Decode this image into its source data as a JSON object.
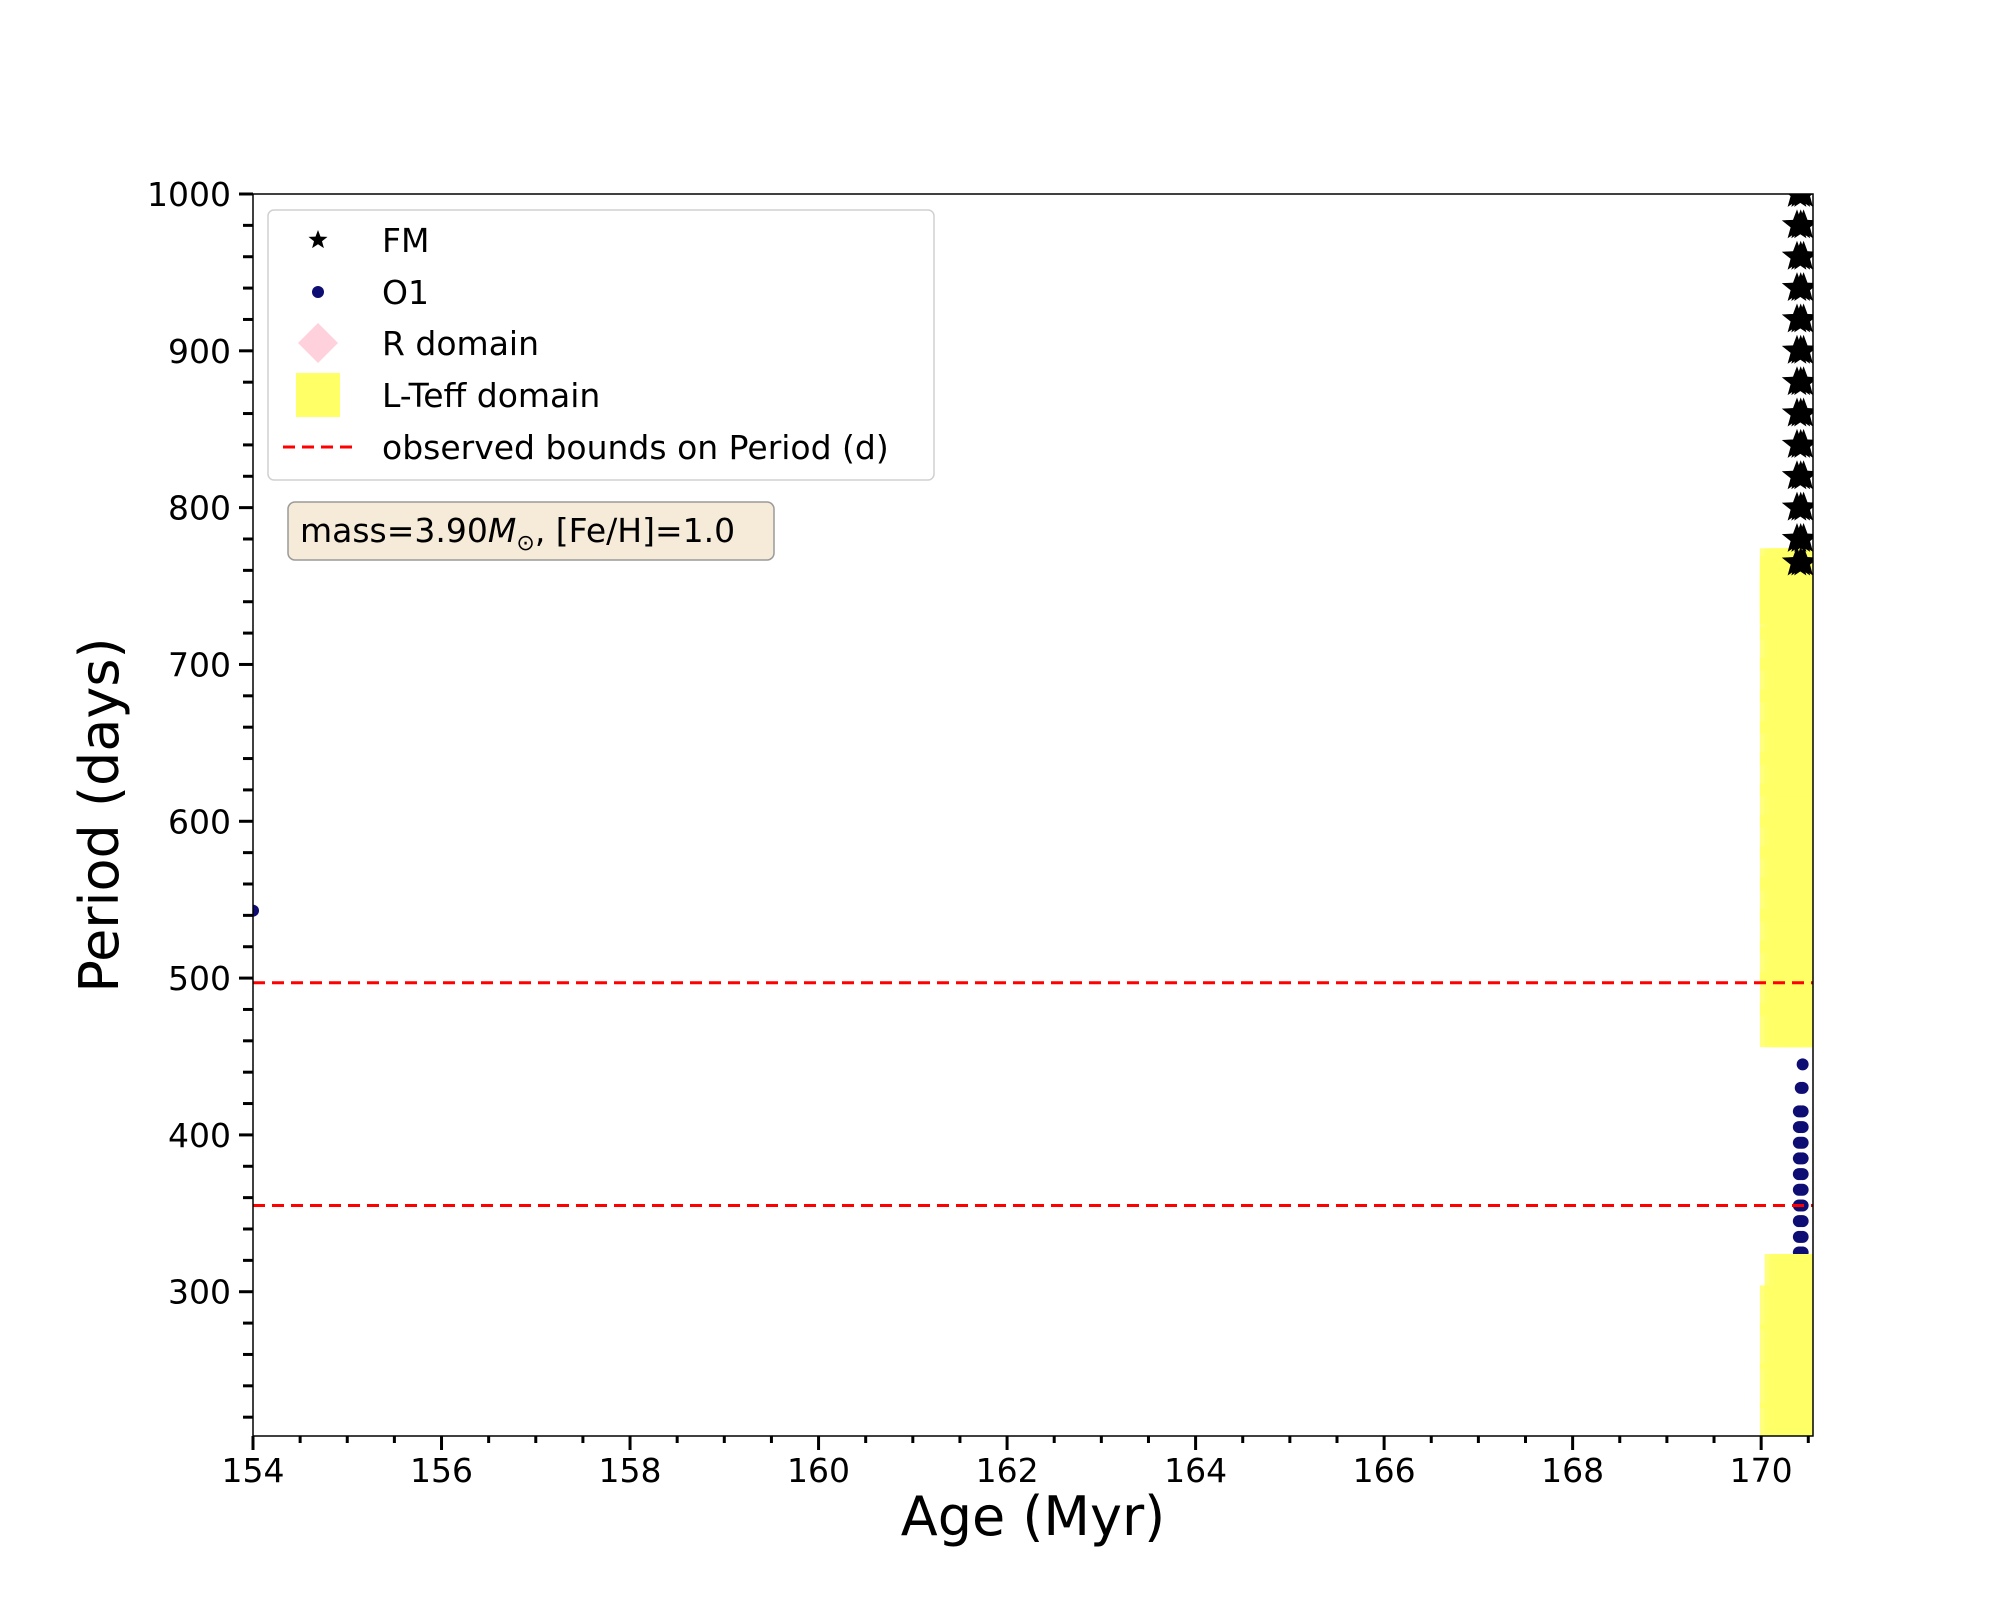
{
  "chart_data": {
    "type": "scatter",
    "xlabel": "Age (Myr)",
    "ylabel": "Period (days)",
    "xlim": [
      154.0,
      170.55
    ],
    "ylim": [
      208,
      1000
    ],
    "x_ticks": [
      154,
      156,
      158,
      160,
      162,
      164,
      166,
      168,
      170
    ],
    "y_ticks": [
      300,
      400,
      500,
      600,
      700,
      800,
      900,
      1000
    ],
    "annotation": {
      "text_prefix": "mass=3.90",
      "text_symbol": "M",
      "text_sub": "⊙",
      "text_suffix": ", [Fe/H]=1.0"
    },
    "legend": {
      "position": "upper-left",
      "entries": [
        {
          "label": "FM",
          "marker": "star",
          "color": "#000000"
        },
        {
          "label": "O1",
          "marker": "circle",
          "color": "#0d0d73"
        },
        {
          "label": "R domain",
          "marker": "diamond",
          "color": "#ffd1dc"
        },
        {
          "label": "L-Teff domain",
          "marker": "square",
          "color": "#ffff66"
        },
        {
          "label": "observed bounds on Period (d)",
          "marker": "dashed-line",
          "color": "#ff0000"
        }
      ]
    },
    "hlines": [
      {
        "y": 497,
        "label": "observed bounds on Period (d)",
        "color": "#ff0000"
      },
      {
        "y": 355,
        "label": "observed bounds on Period (d)",
        "color": "#ff0000"
      }
    ],
    "series": [
      {
        "name": "FM",
        "marker": "star",
        "color": "#000000",
        "x": [
          170.38,
          170.42,
          170.45,
          170.38,
          170.42,
          170.45,
          170.38,
          170.42,
          170.45,
          170.38,
          170.42,
          170.45,
          170.38,
          170.42,
          170.45,
          170.38,
          170.42,
          170.45,
          170.38,
          170.42,
          170.45,
          170.38,
          170.42,
          170.45,
          170.38,
          170.42,
          170.45,
          170.38,
          170.42,
          170.45,
          170.38,
          170.42,
          170.45,
          170.38,
          170.42,
          170.45,
          170.38,
          170.42,
          170.45
        ],
        "y": [
          1000,
          1000,
          1000,
          980,
          980,
          980,
          960,
          960,
          960,
          940,
          940,
          940,
          920,
          920,
          920,
          900,
          900,
          900,
          880,
          880,
          880,
          860,
          860,
          860,
          840,
          840,
          840,
          820,
          820,
          820,
          800,
          800,
          800,
          780,
          780,
          780,
          765,
          765,
          765
        ]
      },
      {
        "name": "O1",
        "marker": "circle",
        "color": "#0d0d73",
        "x": [
          154.0,
          170.4,
          170.42,
          170.44,
          170.4,
          170.42,
          170.44,
          170.4,
          170.42,
          170.44,
          170.4,
          170.42,
          170.44,
          170.4,
          170.42,
          170.44,
          170.4,
          170.42,
          170.44,
          170.4,
          170.42,
          170.44,
          170.4,
          170.42,
          170.44,
          170.4,
          170.42,
          170.44,
          170.4,
          170.42,
          170.44,
          170.42,
          170.44,
          170.44,
          170.46
        ],
        "y": [
          543,
          325,
          325,
          325,
          335,
          335,
          335,
          345,
          345,
          345,
          355,
          355,
          355,
          365,
          365,
          365,
          375,
          375,
          375,
          385,
          385,
          385,
          395,
          395,
          395,
          405,
          405,
          405,
          415,
          415,
          415,
          430,
          430,
          445,
          460
        ]
      },
      {
        "name": "L-Teff domain",
        "marker": "square",
        "color": "#ffff66",
        "x": [
          170.22,
          170.27,
          170.32,
          170.37,
          170.42,
          170.47,
          170.22,
          170.27,
          170.32,
          170.37,
          170.42,
          170.47,
          170.22,
          170.27,
          170.32,
          170.37,
          170.42,
          170.47,
          170.22,
          170.27,
          170.32,
          170.37,
          170.42,
          170.47,
          170.22,
          170.27,
          170.32,
          170.37,
          170.42,
          170.47,
          170.22,
          170.27,
          170.32,
          170.37,
          170.42,
          170.47,
          170.22,
          170.27,
          170.32,
          170.37,
          170.42,
          170.47,
          170.22,
          170.27,
          170.32,
          170.37,
          170.42,
          170.47,
          170.22,
          170.27,
          170.32,
          170.37,
          170.42,
          170.47,
          170.22,
          170.27,
          170.32,
          170.37,
          170.42,
          170.47,
          170.22,
          170.27,
          170.32,
          170.37,
          170.42,
          170.47,
          170.22,
          170.27,
          170.32,
          170.37,
          170.42,
          170.47,
          170.22,
          170.27,
          170.32,
          170.37,
          170.42,
          170.47,
          170.22,
          170.27,
          170.32,
          170.37,
          170.42,
          170.47,
          170.22,
          170.27,
          170.32,
          170.37,
          170.42,
          170.47,
          170.22,
          170.27,
          170.32,
          170.37,
          170.42,
          170.47,
          170.22,
          170.27,
          170.32,
          170.37,
          170.42,
          170.47,
          170.22,
          170.27,
          170.32,
          170.37,
          170.42,
          170.47,
          170.22,
          170.27,
          170.32,
          170.37,
          170.42,
          170.47,
          170.22,
          170.27,
          170.32,
          170.37,
          170.42,
          170.47,
          170.3,
          170.35,
          170.4,
          170.45,
          170.4,
          170.45,
          170.3,
          170.35,
          170.4,
          170.45,
          170.22,
          170.27,
          170.32,
          170.37,
          170.42,
          170.47,
          170.22,
          170.27,
          170.32,
          170.37,
          170.42,
          170.47,
          170.22,
          170.27,
          170.32,
          170.37,
          170.42,
          170.47,
          170.22,
          170.27,
          170.32,
          170.37,
          170.42,
          170.47,
          170.27,
          170.32,
          170.37,
          170.42,
          170.47
        ],
        "y": [
          470,
          470,
          470,
          470,
          470,
          470,
          490,
          490,
          490,
          490,
          490,
          490,
          510,
          510,
          510,
          510,
          510,
          510,
          530,
          530,
          530,
          530,
          530,
          530,
          550,
          550,
          550,
          550,
          550,
          550,
          570,
          570,
          570,
          570,
          570,
          570,
          590,
          590,
          590,
          590,
          590,
          590,
          610,
          610,
          610,
          610,
          610,
          610,
          630,
          630,
          630,
          630,
          630,
          630,
          650,
          650,
          650,
          650,
          650,
          650,
          670,
          670,
          670,
          670,
          670,
          670,
          690,
          690,
          690,
          690,
          690,
          690,
          710,
          710,
          710,
          710,
          710,
          710,
          730,
          730,
          730,
          730,
          730,
          730,
          740,
          740,
          740,
          740,
          740,
          740,
          750,
          750,
          750,
          750,
          750,
          750,
          760,
          760,
          760,
          760,
          760,
          760,
          740,
          740,
          740,
          740,
          740,
          740,
          755,
          755,
          755,
          755,
          755,
          755,
          745,
          745,
          745,
          745,
          745,
          745,
          720,
          720,
          720,
          720,
          705,
          705,
          730,
          730,
          730,
          730,
          215,
          215,
          215,
          215,
          215,
          215,
          240,
          240,
          240,
          240,
          240,
          240,
          265,
          265,
          265,
          265,
          265,
          265,
          290,
          290,
          290,
          290,
          290,
          290,
          310,
          310,
          310,
          310,
          310
        ]
      }
    ]
  }
}
